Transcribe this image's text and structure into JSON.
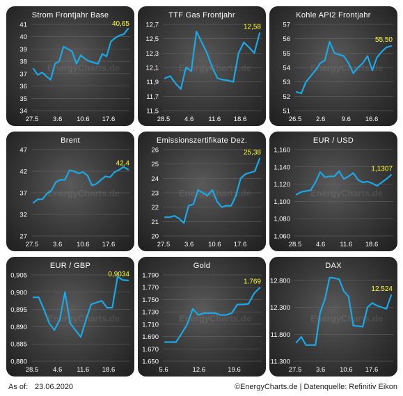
{
  "footer": {
    "as_of_label": "As of:",
    "as_of_date": "23.06.2020",
    "credit": "©EnergyCharts.de | Datenquelle: Refinitiv Eikon"
  },
  "watermark": "EnergyCharts.de",
  "colors": {
    "line": "#1aa8e6",
    "last_value": "#ffff33",
    "text": "#ffffff",
    "grid": "#6a6a6a"
  },
  "chart_data": [
    {
      "type": "line",
      "title": "Strom Frontjahr Base",
      "yticks": [
        "41",
        "40",
        "39",
        "38",
        "37",
        "36",
        "35",
        "34"
      ],
      "ylim": [
        34,
        41
      ],
      "xticks": [
        "27.5",
        "3.6",
        "10.6",
        "17.6"
      ],
      "last_label": "40,65",
      "values": [
        37.4,
        36.9,
        37.1,
        36.8,
        36.5,
        37.8,
        38.0,
        39.2,
        39.0,
        38.8,
        37.8,
        38.5,
        38.2,
        38.0,
        37.9,
        37.8,
        38.6,
        38.4,
        39.6,
        39.9,
        40.1,
        40.2,
        40.65
      ]
    },
    {
      "type": "line",
      "title": "TTF Gas Frontjahr",
      "yticks": [
        "12,7",
        "12,5",
        "12,3",
        "12,1",
        "11,9",
        "11,7",
        "11,5"
      ],
      "ylim": [
        11.5,
        12.7
      ],
      "xticks": [
        "28.5",
        "4.6",
        "11.6",
        "18.6"
      ],
      "last_label": "12,58",
      "values": [
        11.95,
        11.98,
        11.88,
        11.8,
        12.1,
        12.05,
        12.6,
        12.45,
        12.3,
        12.1,
        11.95,
        11.93,
        11.92,
        11.9,
        12.3,
        12.45,
        12.38,
        12.3,
        12.58
      ]
    },
    {
      "type": "line",
      "title": "Kohle API2 Frontjahr",
      "yticks": [
        "57",
        "56",
        "55",
        "54",
        "53",
        "52",
        "51"
      ],
      "ylim": [
        51,
        57
      ],
      "xticks": [
        "26.5",
        "2.6",
        "9.6",
        "16.6"
      ],
      "last_label": "55,50",
      "values": [
        52.3,
        52.2,
        53.0,
        53.4,
        53.8,
        54.3,
        54.5,
        55.8,
        55.0,
        54.9,
        54.8,
        54.3,
        53.6,
        54.0,
        54.3,
        54.8,
        53.8,
        54.7,
        55.1,
        55.4,
        55.5
      ]
    },
    {
      "type": "line",
      "title": "Brent",
      "yticks": [
        "47",
        "42",
        "37",
        "32",
        "27"
      ],
      "ylim": [
        27,
        47
      ],
      "xticks": [
        "27.5",
        "3.6",
        "10.6",
        "17.6"
      ],
      "last_label": "42,4",
      "values": [
        34.7,
        35.5,
        35.5,
        36.8,
        37.5,
        39.5,
        40.0,
        40.0,
        42.2,
        42.0,
        41.5,
        41.8,
        41.0,
        38.7,
        39.1,
        40.0,
        40.8,
        40.6,
        41.8,
        42.3,
        43.0,
        42.4
      ]
    },
    {
      "type": "line",
      "title": "Emissionszertifikate Dez.",
      "yticks": [
        "26",
        "25",
        "24",
        "23",
        "22",
        "21",
        "20"
      ],
      "ylim": [
        20,
        26
      ],
      "xticks": [
        "27.5",
        "3.6",
        "10.6",
        "17.6"
      ],
      "last_label": "25,38",
      "values": [
        21.3,
        21.3,
        21.4,
        21.2,
        20.9,
        22.1,
        22.2,
        23.2,
        23.0,
        22.8,
        23.2,
        22.4,
        22.0,
        22.1,
        22.1,
        22.8,
        24.0,
        24.3,
        24.4,
        24.5,
        25.38
      ]
    },
    {
      "type": "line",
      "title": "EUR / USD",
      "yticks": [
        "1,160",
        "1,140",
        "1,120",
        "1,100",
        "1,080",
        "1,060"
      ],
      "ylim": [
        1.06,
        1.16
      ],
      "xticks": [
        "28.5",
        "4.6",
        "11.6",
        "18.6"
      ],
      "last_label": "1,1307",
      "values": [
        1.108,
        1.111,
        1.112,
        1.113,
        1.122,
        1.134,
        1.128,
        1.129,
        1.129,
        1.135,
        1.126,
        1.129,
        1.133,
        1.125,
        1.122,
        1.123,
        1.121,
        1.118,
        1.122,
        1.126,
        1.1307
      ]
    },
    {
      "type": "line",
      "title": "EUR / GBP",
      "yticks": [
        "0,905",
        "0,900",
        "0,895",
        "0,890",
        "0,885",
        "0,880"
      ],
      "ylim": [
        0.88,
        0.905
      ],
      "xticks": [
        "28.5",
        "4.6",
        "11.6",
        "18.6"
      ],
      "last_label": "0,9034",
      "values": [
        0.8985,
        0.8985,
        0.895,
        0.891,
        0.889,
        0.892,
        0.9,
        0.891,
        0.889,
        0.887,
        0.892,
        0.8965,
        0.897,
        0.8975,
        0.8955,
        0.8955,
        0.9045,
        0.9035,
        0.9034
      ]
    },
    {
      "type": "line",
      "title": "Gold",
      "yticks": [
        "1.790",
        "1.770",
        "1.750",
        "1.730",
        "1.710",
        "1.690",
        "1.670",
        "1.650"
      ],
      "ylim": [
        1650,
        1790
      ],
      "xticks": [
        "5.6",
        "12.6",
        "19.6"
      ],
      "last_label": "1.769",
      "values": [
        1681,
        1681,
        1681,
        1695,
        1710,
        1735,
        1725,
        1728,
        1728,
        1728,
        1725,
        1725,
        1728,
        1742,
        1742,
        1743,
        1760,
        1769
      ]
    },
    {
      "type": "line",
      "title": "DAX",
      "yticks": [
        "12.800",
        "12.300",
        "11.800",
        "11.300"
      ],
      "ylim": [
        11300,
        12900
      ],
      "xticks": [
        "27.5",
        "3.6",
        "10.6",
        "17.6"
      ],
      "last_label": "12.524",
      "values": [
        11650,
        11750,
        11600,
        11600,
        11600,
        12200,
        12450,
        12850,
        12840,
        12820,
        12600,
        12500,
        11960,
        11950,
        11940,
        12300,
        12380,
        12330,
        12300,
        12270,
        12524
      ]
    }
  ]
}
